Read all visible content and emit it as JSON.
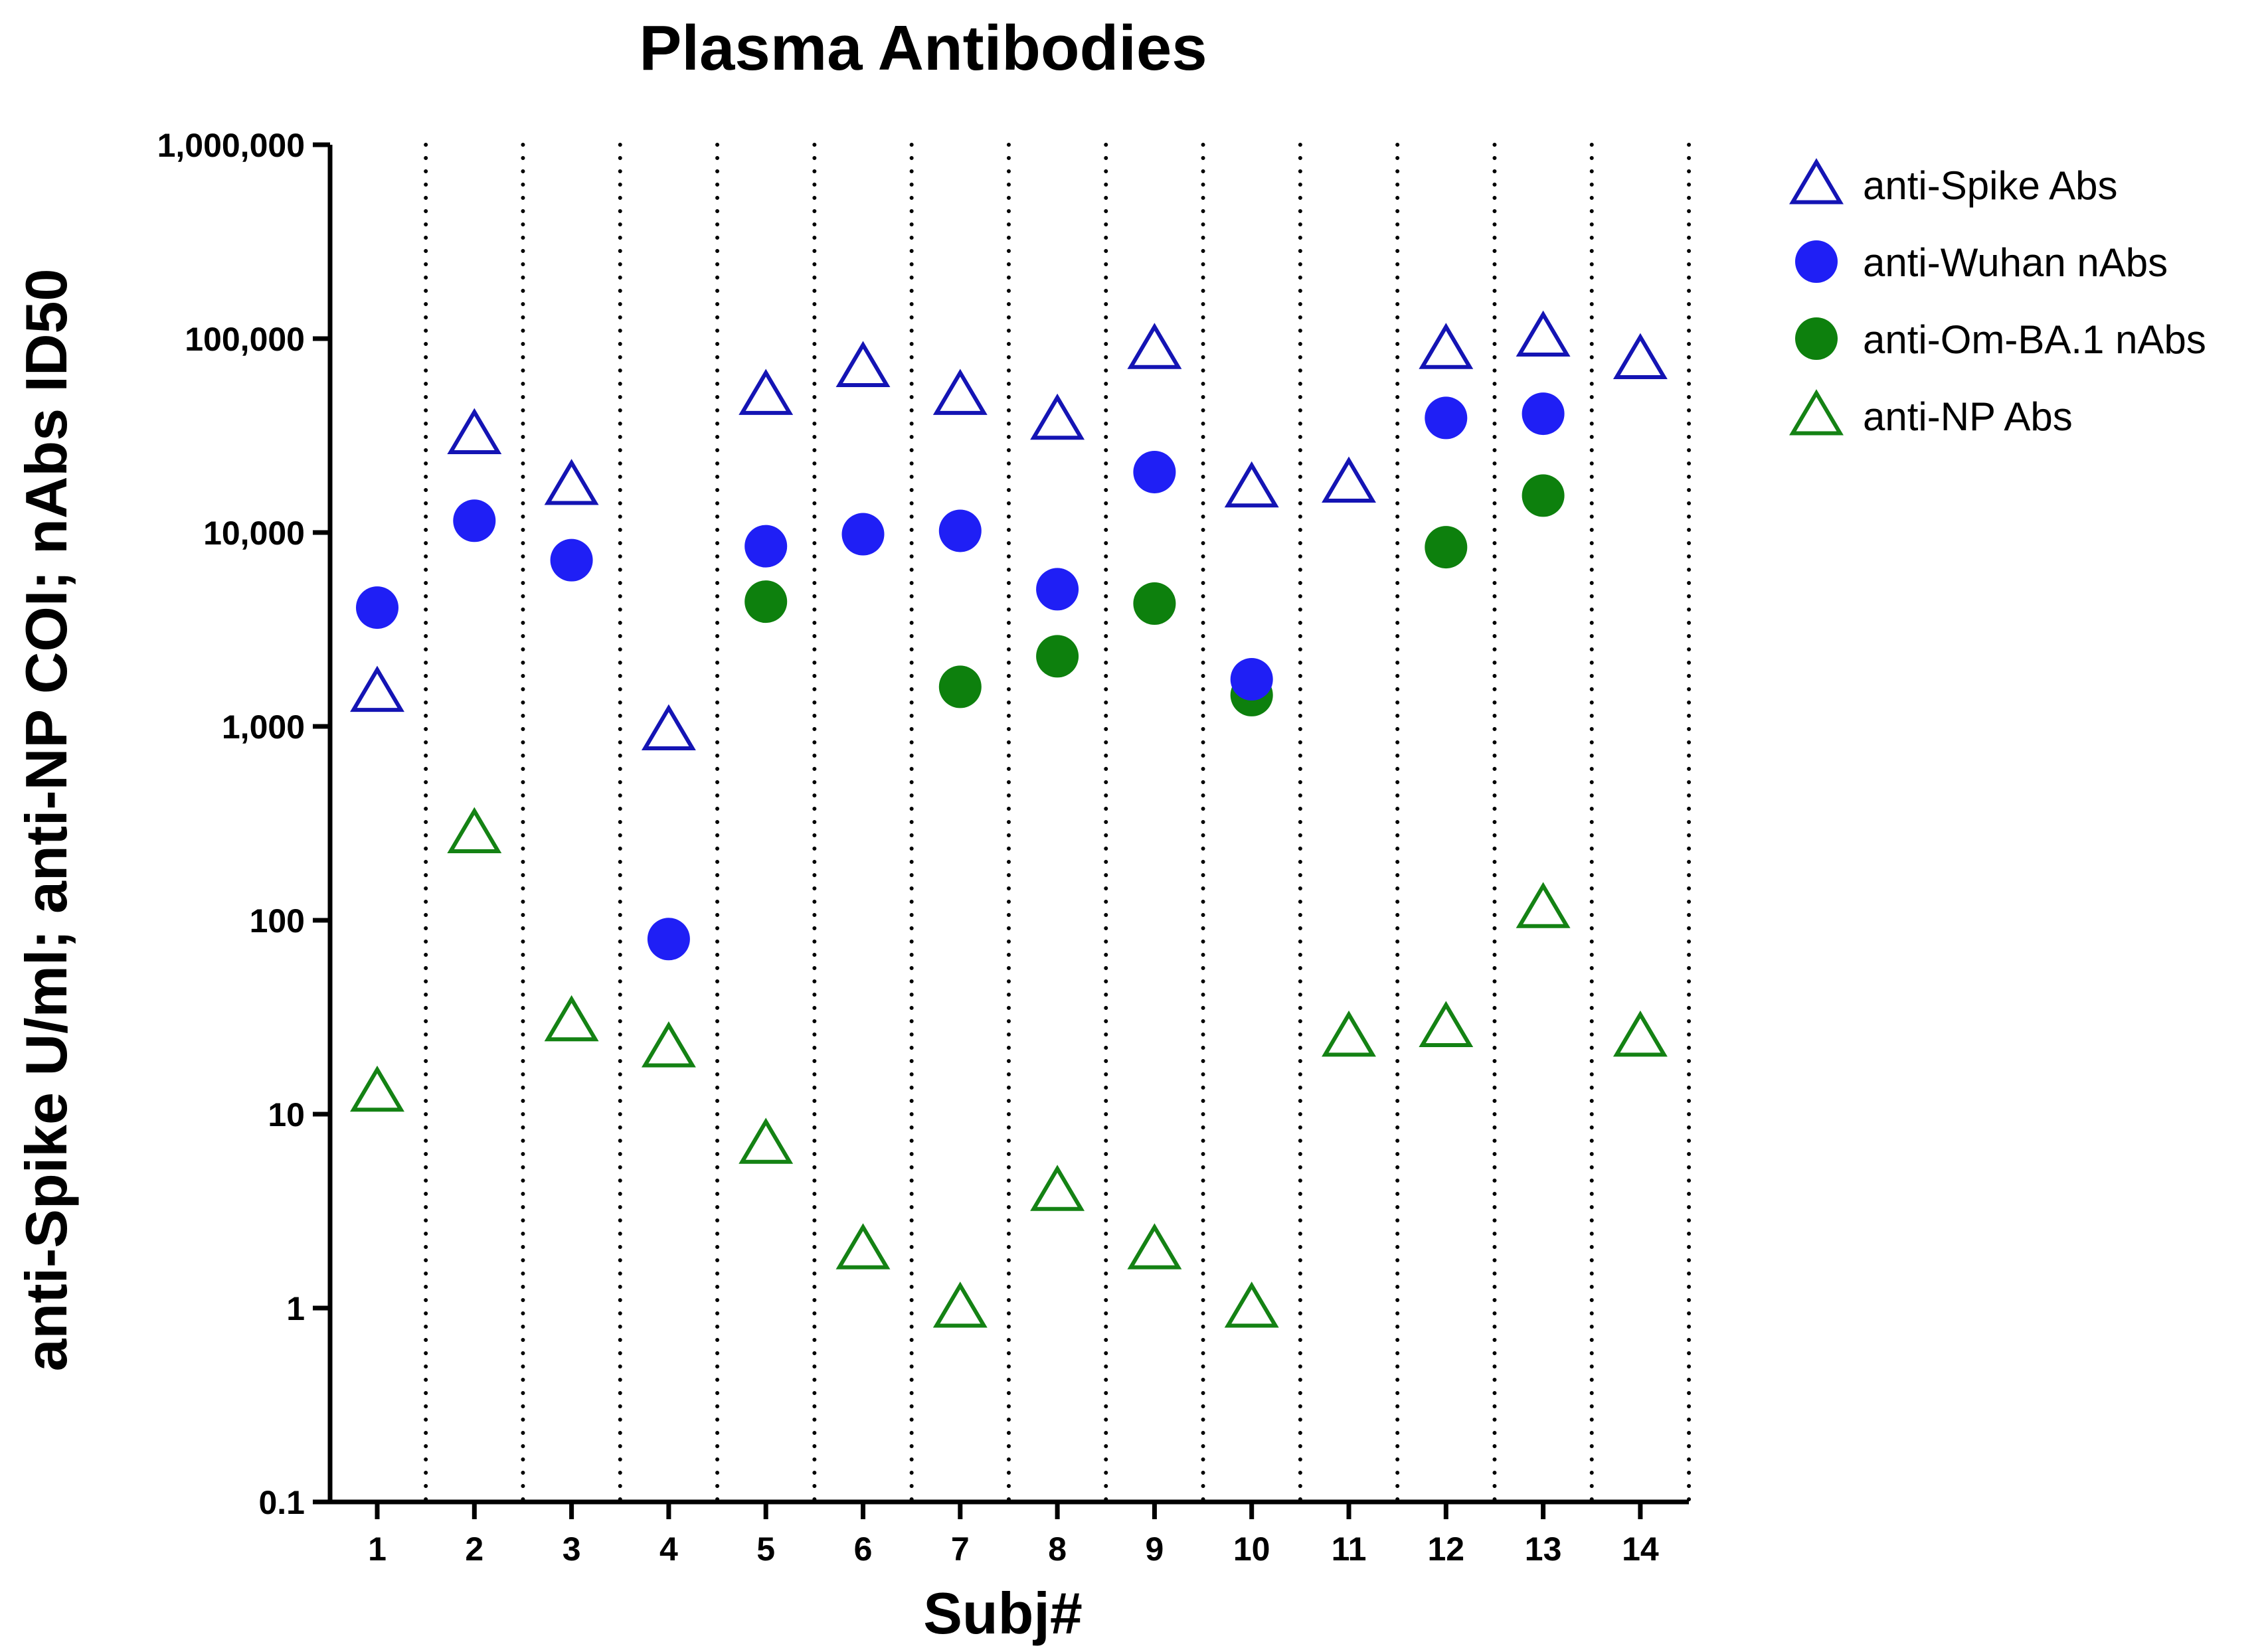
{
  "chart_data": {
    "type": "scatter",
    "title": "Plasma Antibodies",
    "xlabel": "Subj#",
    "ylabel": "anti-Spike U/ml; anti-NP COI; nAbs ID50",
    "yscale": "log",
    "ylim": [
      0.1,
      1000000
    ],
    "y_ticks": [
      {
        "value": 0.1,
        "label": "0.1"
      },
      {
        "value": 1,
        "label": "1"
      },
      {
        "value": 10,
        "label": "10"
      },
      {
        "value": 100,
        "label": "100"
      },
      {
        "value": 1000,
        "label": "1,000"
      },
      {
        "value": 10000,
        "label": "10,000"
      },
      {
        "value": 100000,
        "label": "100,000"
      },
      {
        "value": 1000000,
        "label": "1,000,000"
      }
    ],
    "categories": [
      "1",
      "2",
      "3",
      "4",
      "5",
      "6",
      "7",
      "8",
      "9",
      "10",
      "11",
      "12",
      "13",
      "14"
    ],
    "grid": "vertical dotted separators between subjects",
    "legend_position": "top-right",
    "series": [
      {
        "name": "anti-Spike Abs",
        "marker": "triangle-open",
        "color": "#1414b4",
        "values": [
          1500,
          32000,
          17500,
          950,
          51000,
          71000,
          51000,
          38000,
          88000,
          17000,
          18000,
          88000,
          102000,
          78000
        ]
      },
      {
        "name": "anti-Wuhan nAbs",
        "marker": "circle-filled",
        "color": "#1f1ff5",
        "values": [
          4100,
          11500,
          7200,
          80,
          8500,
          9800,
          10200,
          5100,
          20500,
          1750,
          null,
          39000,
          41000,
          null
        ]
      },
      {
        "name": "anti-Om-BA.1 nAbs",
        "marker": "circle-filled",
        "color": "#0d800d",
        "values": [
          null,
          null,
          null,
          null,
          4400,
          null,
          1600,
          2300,
          4300,
          1450,
          null,
          8400,
          15500,
          null
        ]
      },
      {
        "name": "anti-NP Abs",
        "marker": "triangle-open",
        "color": "#148214",
        "values": [
          13,
          280,
          30,
          22,
          7,
          2,
          1,
          4,
          2,
          1,
          25,
          28,
          115,
          25
        ]
      }
    ]
  }
}
